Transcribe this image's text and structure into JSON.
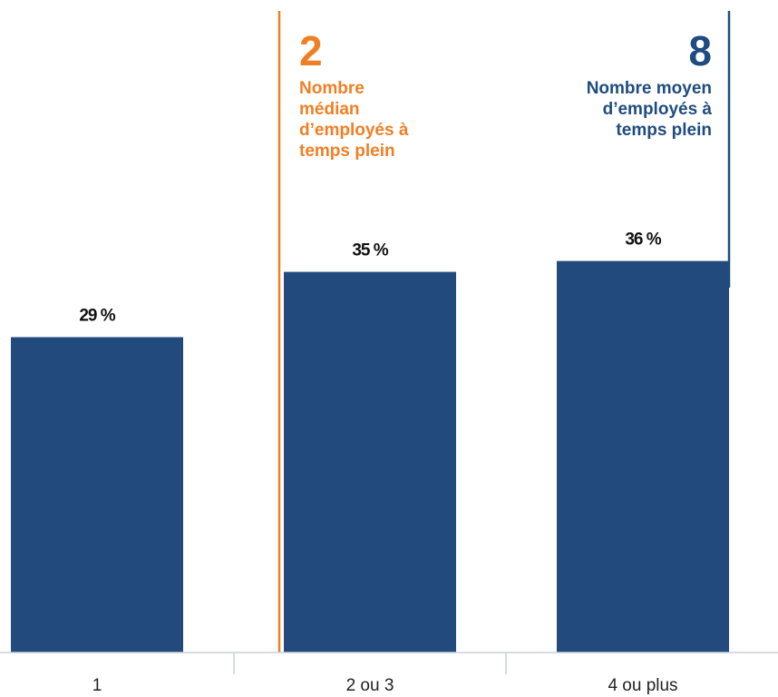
{
  "colors": {
    "bar": "#224A7C",
    "median": "#F07F23",
    "mean": "#1F4C80",
    "axis": "#C9D1DC"
  },
  "chart_data": {
    "type": "bar",
    "title": "",
    "xlabel": "",
    "ylabel": "",
    "categories": [
      "1",
      "2 ou 3",
      "4 ou plus"
    ],
    "values": [
      29,
      35,
      36
    ],
    "value_labels": [
      "29 %",
      "35 %",
      "36 %"
    ],
    "ylim": [
      0,
      60
    ],
    "grid": false,
    "legend": "none",
    "annotations": {
      "median": {
        "value": "2",
        "label": "Nombre médian d’employés à temps plein",
        "lines": [
          "Nombre",
          "médian",
          "d’employés à",
          "temps plein"
        ]
      },
      "mean": {
        "value": "8",
        "label": "Nombre moyen d’employés à temps plein",
        "lines": [
          "Nombre moyen",
          "d’employés à",
          "temps plein"
        ]
      }
    }
  }
}
